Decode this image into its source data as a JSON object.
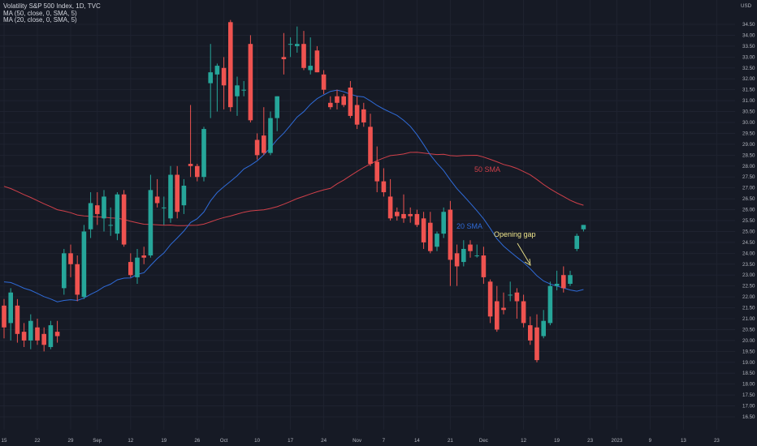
{
  "header": {
    "symbol": "Volatility S&P 500 Index, 1D, TVC",
    "ma50": "MA (50, close, 0, SMA, 5)",
    "ma20": "MA (20, close, 0, SMA, 5)",
    "currency": "USD"
  },
  "colors": {
    "background": "#161a25",
    "up": "#26a69a",
    "down": "#ef5350",
    "sma50": "#d0404a",
    "sma20": "#2f6bd8",
    "annotation": "#f0e68c",
    "axis_text": "#b2b5be"
  },
  "chart_data": {
    "type": "candlestick",
    "y_ticks": [
      "16.50",
      "17.00",
      "17.50",
      "18.00",
      "18.50",
      "19.00",
      "19.50",
      "20.00",
      "20.50",
      "21.00",
      "21.50",
      "22.00",
      "22.50",
      "23.00",
      "23.50",
      "24.00",
      "24.50",
      "25.00",
      "25.50",
      "26.00",
      "26.50",
      "27.00",
      "27.50",
      "28.00",
      "28.50",
      "29.00",
      "29.50",
      "30.00",
      "30.50",
      "31.00",
      "31.50",
      "32.00",
      "32.50",
      "33.00",
      "33.50",
      "34.00",
      "34.50"
    ],
    "ylim": [
      16.25,
      34.75
    ],
    "x_ticks": [
      {
        "label": "15",
        "i": 0
      },
      {
        "label": "22",
        "i": 5
      },
      {
        "label": "29",
        "i": 10
      },
      {
        "label": "Sep",
        "i": 14
      },
      {
        "label": "12",
        "i": 19
      },
      {
        "label": "19",
        "i": 24
      },
      {
        "label": "26",
        "i": 29
      },
      {
        "label": "Oct",
        "i": 33
      },
      {
        "label": "10",
        "i": 38
      },
      {
        "label": "17",
        "i": 43
      },
      {
        "label": "24",
        "i": 48
      },
      {
        "label": "Nov",
        "i": 53
      },
      {
        "label": "7",
        "i": 57
      },
      {
        "label": "14",
        "i": 62
      },
      {
        "label": "21",
        "i": 67
      },
      {
        "label": "Dec",
        "i": 72
      },
      {
        "label": "12",
        "i": 78
      },
      {
        "label": "19",
        "i": 83
      },
      {
        "label": "23",
        "i": 88
      },
      {
        "label": "2023",
        "i": 92
      },
      {
        "label": "9",
        "i": 97
      },
      {
        "label": "13",
        "i": 102
      },
      {
        "label": "23",
        "i": 107
      }
    ],
    "candles": [
      {
        "o": 21.6,
        "h": 21.9,
        "l": 20.1,
        "c": 20.6
      },
      {
        "o": 20.8,
        "h": 22.4,
        "l": 20.0,
        "c": 22.2
      },
      {
        "o": 21.6,
        "h": 21.9,
        "l": 19.9,
        "c": 20.3
      },
      {
        "o": 20.4,
        "h": 20.8,
        "l": 19.7,
        "c": 20.0
      },
      {
        "o": 20.0,
        "h": 21.2,
        "l": 19.6,
        "c": 20.9
      },
      {
        "o": 20.6,
        "h": 21.0,
        "l": 19.8,
        "c": 20.0
      },
      {
        "o": 20.3,
        "h": 20.6,
        "l": 19.5,
        "c": 19.8
      },
      {
        "o": 19.7,
        "h": 20.9,
        "l": 19.6,
        "c": 20.7
      },
      {
        "o": 20.4,
        "h": 20.9,
        "l": 19.9,
        "c": 20.2
      },
      {
        "o": 22.4,
        "h": 24.2,
        "l": 22.1,
        "c": 24.0
      },
      {
        "o": 24.0,
        "h": 24.4,
        "l": 22.9,
        "c": 23.5
      },
      {
        "o": 23.5,
        "h": 23.9,
        "l": 21.8,
        "c": 22.1
      },
      {
        "o": 22.0,
        "h": 25.3,
        "l": 21.9,
        "c": 25.0
      },
      {
        "o": 25.1,
        "h": 26.8,
        "l": 24.7,
        "c": 26.3
      },
      {
        "o": 26.2,
        "h": 26.8,
        "l": 25.3,
        "c": 25.8
      },
      {
        "o": 25.6,
        "h": 26.9,
        "l": 25.0,
        "c": 26.6
      },
      {
        "o": 25.3,
        "h": 26.1,
        "l": 24.8,
        "c": 25.3
      },
      {
        "o": 24.9,
        "h": 26.8,
        "l": 24.6,
        "c": 26.7
      },
      {
        "o": 26.7,
        "h": 26.9,
        "l": 24.3,
        "c": 24.4
      },
      {
        "o": 23.6,
        "h": 24.0,
        "l": 22.9,
        "c": 23.0
      },
      {
        "o": 22.9,
        "h": 24.2,
        "l": 22.6,
        "c": 23.8
      },
      {
        "o": 23.9,
        "h": 24.3,
        "l": 23.5,
        "c": 23.8
      },
      {
        "o": 23.9,
        "h": 27.6,
        "l": 23.8,
        "c": 26.9
      },
      {
        "o": 26.6,
        "h": 27.4,
        "l": 26.1,
        "c": 26.3
      },
      {
        "o": 26.1,
        "h": 26.6,
        "l": 25.3,
        "c": 26.1
      },
      {
        "o": 25.6,
        "h": 28.0,
        "l": 25.4,
        "c": 27.6
      },
      {
        "o": 27.6,
        "h": 28.0,
        "l": 25.6,
        "c": 25.9
      },
      {
        "o": 26.2,
        "h": 27.4,
        "l": 25.8,
        "c": 27.1
      },
      {
        "o": 28.1,
        "h": 30.8,
        "l": 27.5,
        "c": 28.0
      },
      {
        "o": 28.0,
        "h": 28.1,
        "l": 27.3,
        "c": 27.5
      },
      {
        "o": 27.5,
        "h": 29.8,
        "l": 27.3,
        "c": 29.7
      },
      {
        "o": 31.8,
        "h": 33.6,
        "l": 30.2,
        "c": 32.3
      },
      {
        "o": 32.2,
        "h": 32.7,
        "l": 30.5,
        "c": 32.6
      },
      {
        "o": 32.5,
        "h": 33.0,
        "l": 30.6,
        "c": 31.7
      },
      {
        "o": 34.6,
        "h": 34.7,
        "l": 30.5,
        "c": 30.7
      },
      {
        "o": 31.2,
        "h": 32.1,
        "l": 30.3,
        "c": 31.7
      },
      {
        "o": 31.5,
        "h": 31.9,
        "l": 31.2,
        "c": 31.5
      },
      {
        "o": 33.6,
        "h": 34.0,
        "l": 30.0,
        "c": 30.1
      },
      {
        "o": 29.2,
        "h": 29.5,
        "l": 28.3,
        "c": 28.5
      },
      {
        "o": 29.4,
        "h": 30.7,
        "l": 28.5,
        "c": 28.6
      },
      {
        "o": 28.6,
        "h": 30.5,
        "l": 28.5,
        "c": 30.2
      },
      {
        "o": 30.2,
        "h": 31.2,
        "l": 29.6,
        "c": 31.2
      },
      {
        "o": 33.0,
        "h": 34.1,
        "l": 32.2,
        "c": 32.9
      },
      {
        "o": 33.6,
        "h": 33.9,
        "l": 33.0,
        "c": 33.6
      },
      {
        "o": 33.5,
        "h": 34.4,
        "l": 33.2,
        "c": 33.6
      },
      {
        "o": 33.6,
        "h": 34.2,
        "l": 32.4,
        "c": 32.5
      },
      {
        "o": 32.4,
        "h": 33.9,
        "l": 32.2,
        "c": 32.6
      },
      {
        "o": 33.3,
        "h": 33.5,
        "l": 32.3,
        "c": 32.3
      },
      {
        "o": 32.2,
        "h": 32.4,
        "l": 31.3,
        "c": 31.5
      },
      {
        "o": 30.9,
        "h": 31.2,
        "l": 30.6,
        "c": 30.7
      },
      {
        "o": 31.2,
        "h": 31.5,
        "l": 30.6,
        "c": 30.9
      }
    ],
    "candles_b": [
      {
        "o": 31.2,
        "h": 31.3,
        "l": 30.7,
        "c": 30.8
      },
      {
        "o": 31.6,
        "h": 31.9,
        "l": 30.2,
        "c": 30.3
      },
      {
        "o": 30.8,
        "h": 31.2,
        "l": 29.7,
        "c": 29.9
      },
      {
        "o": 30.6,
        "h": 30.9,
        "l": 29.8,
        "c": 30.0
      },
      {
        "o": 29.8,
        "h": 30.4,
        "l": 28.0,
        "c": 28.1
      },
      {
        "o": 28.2,
        "h": 28.9,
        "l": 26.8,
        "c": 27.3
      },
      {
        "o": 27.3,
        "h": 27.9,
        "l": 26.6,
        "c": 26.8
      },
      {
        "o": 26.6,
        "h": 27.4,
        "l": 25.5,
        "c": 25.6
      },
      {
        "o": 25.9,
        "h": 26.1,
        "l": 25.5,
        "c": 25.7
      },
      {
        "o": 25.8,
        "h": 26.7,
        "l": 25.4,
        "c": 25.6
      },
      {
        "o": 25.8,
        "h": 26.1,
        "l": 25.4,
        "c": 25.7
      },
      {
        "o": 25.8,
        "h": 26.0,
        "l": 25.2,
        "c": 25.3
      },
      {
        "o": 25.6,
        "h": 25.9,
        "l": 24.2,
        "c": 24.5
      },
      {
        "o": 25.4,
        "h": 25.9,
        "l": 24.0,
        "c": 24.1
      },
      {
        "o": 24.3,
        "h": 25.0,
        "l": 24.1,
        "c": 24.9
      },
      {
        "o": 24.9,
        "h": 26.1,
        "l": 24.7,
        "c": 25.9
      },
      {
        "o": 26.0,
        "h": 26.4,
        "l": 22.5,
        "c": 23.7
      },
      {
        "o": 24.0,
        "h": 24.4,
        "l": 22.5,
        "c": 23.4
      },
      {
        "o": 23.6,
        "h": 24.6,
        "l": 23.4,
        "c": 24.2
      },
      {
        "o": 24.4,
        "h": 24.6,
        "l": 23.8,
        "c": 24.1
      },
      {
        "o": 23.9,
        "h": 24.4,
        "l": 23.8,
        "c": 23.9
      },
      {
        "o": 23.9,
        "h": 24.3,
        "l": 22.6,
        "c": 22.9
      },
      {
        "o": 22.7,
        "h": 22.8,
        "l": 20.8,
        "c": 21.1
      },
      {
        "o": 21.8,
        "h": 22.5,
        "l": 20.4,
        "c": 20.5
      },
      {
        "o": 21.5,
        "h": 22.2,
        "l": 21.2,
        "c": 21.4
      },
      {
        "o": 22.1,
        "h": 22.7,
        "l": 21.8,
        "c": 22.1
      },
      {
        "o": 22.2,
        "h": 22.4,
        "l": 21.0,
        "c": 21.8
      },
      {
        "o": 21.8,
        "h": 22.1,
        "l": 20.6,
        "c": 20.8
      },
      {
        "o": 20.7,
        "h": 21.1,
        "l": 19.8,
        "c": 20.0
      },
      {
        "o": 20.6,
        "h": 21.2,
        "l": 19.0,
        "c": 19.1
      },
      {
        "o": 20.2,
        "h": 21.4,
        "l": 20.1,
        "c": 20.9
      },
      {
        "o": 20.8,
        "h": 22.7,
        "l": 20.7,
        "c": 22.5
      },
      {
        "o": 22.5,
        "h": 23.2,
        "l": 22.3,
        "c": 22.6
      },
      {
        "o": 23.0,
        "h": 23.4,
        "l": 22.2,
        "c": 22.4
      },
      {
        "o": 22.6,
        "h": 23.2,
        "l": 22.5,
        "c": 23.0
      },
      {
        "o": 24.2,
        "h": 24.9,
        "l": 24.1,
        "c": 24.8
      },
      {
        "o": 25.1,
        "h": 25.3,
        "l": 25.0,
        "c": 25.3
      }
    ],
    "sma50_label": "50 SMA",
    "sma20_label": "20 SMA",
    "annotation": "Opening gap"
  }
}
